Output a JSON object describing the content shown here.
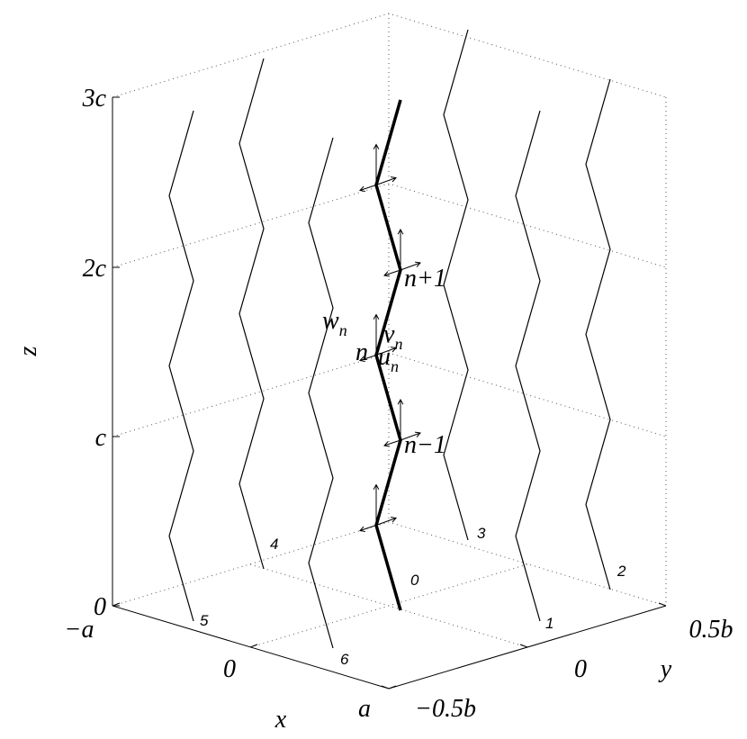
{
  "axes": {
    "z": {
      "label": "z",
      "ticks": [
        "3c",
        "2c",
        "c",
        "0"
      ]
    },
    "x": {
      "label": "x",
      "ticks": [
        "−a",
        "0",
        "a"
      ]
    },
    "y": {
      "label": "y",
      "ticks": [
        "−0.5b",
        "0",
        "0.5b"
      ]
    }
  },
  "chains": [
    "0",
    "1",
    "2",
    "3",
    "4",
    "5",
    "6"
  ],
  "annotations": {
    "n_plus": "n+1",
    "n": "n",
    "n_minus": "n−1",
    "w": {
      "main": "w",
      "sub": "n"
    },
    "v": {
      "main": "v",
      "sub": "n"
    },
    "u": {
      "main": "u",
      "sub": "n"
    }
  }
}
